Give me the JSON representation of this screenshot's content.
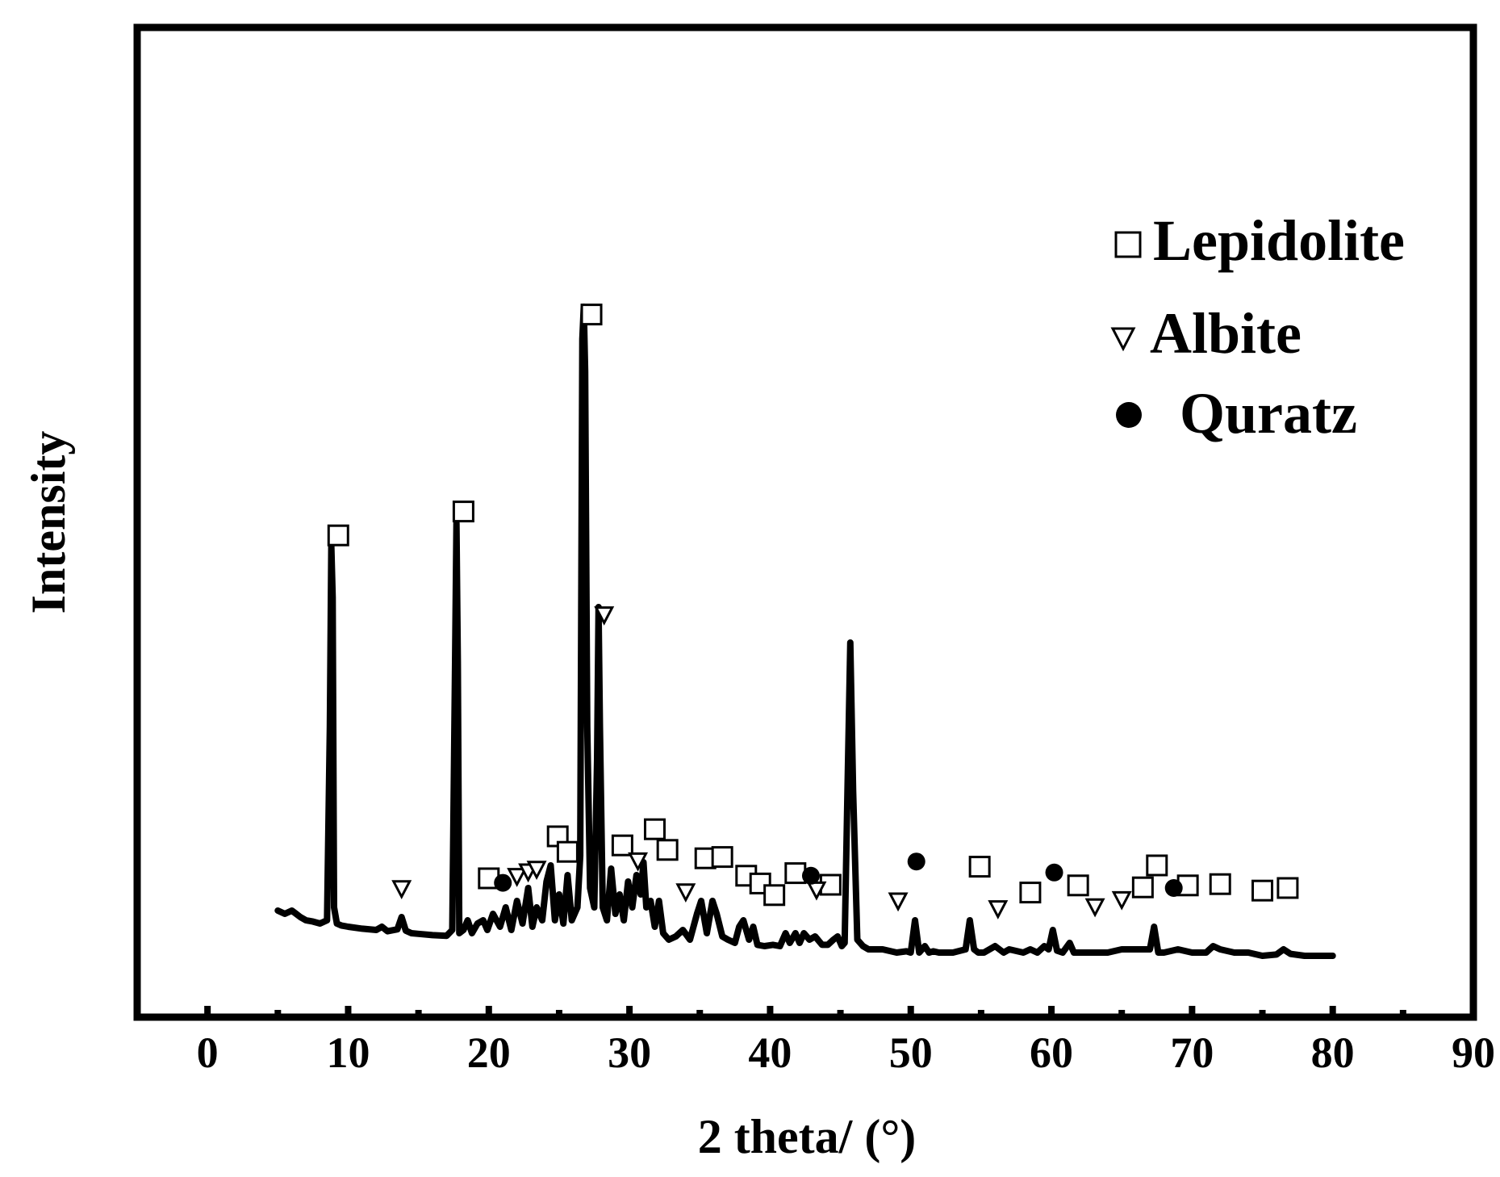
{
  "chart_data": {
    "type": "line",
    "xlabel": "2 theta/ (°)",
    "ylabel": "Intensity",
    "xlim": [
      -5,
      90
    ],
    "ylim": [
      0,
      100
    ],
    "x_ticks": [
      "0",
      "10",
      "20",
      "30",
      "40",
      "50",
      "60",
      "70",
      "80",
      "90"
    ],
    "x_tick_values": [
      0,
      10,
      20,
      30,
      40,
      50,
      60,
      70,
      80,
      90
    ],
    "x_minor_ticks": [
      -5,
      5,
      15,
      25,
      35,
      45,
      55,
      65,
      75,
      85
    ],
    "legend_position": "top-right",
    "legend": [
      {
        "marker": "open-square",
        "label": "Lepidolite"
      },
      {
        "marker": "open-triangle-down",
        "label": "Albite"
      },
      {
        "marker": "filled-circle",
        "label": "Quratz"
      }
    ],
    "series": [
      {
        "x": [
          5,
          5.5,
          6,
          6.3,
          6.6,
          7,
          7.5,
          8,
          8.5,
          8.7,
          8.8,
          8.9,
          9.0,
          9.2,
          9.5,
          10,
          11,
          12,
          12.4,
          12.8,
          13.5,
          13.8,
          14.1,
          14.5,
          15,
          16,
          17,
          17.4,
          17.6,
          17.7,
          17.8,
          17.9,
          18.2,
          18.5,
          18.8,
          19.2,
          19.6,
          19.9,
          20.3,
          20.8,
          21.2,
          21.6,
          22,
          22.4,
          22.8,
          23.1,
          23.4,
          23.8,
          24.1,
          24.4,
          24.7,
          25.0,
          25.3,
          25.6,
          25.9,
          26.3,
          26.5,
          26.65,
          26.75,
          26.85,
          27.0,
          27.2,
          27.5,
          27.7,
          27.8,
          27.9,
          28.1,
          28.4,
          28.7,
          29.0,
          29.3,
          29.6,
          29.9,
          30.2,
          30.5,
          30.8,
          31.0,
          31.2,
          31.5,
          31.8,
          32.1,
          32.4,
          32.8,
          33.3,
          33.8,
          34.3,
          34.8,
          35.1,
          35.5,
          35.9,
          36.2,
          36.6,
          37,
          37.5,
          37.8,
          38.1,
          38.5,
          38.8,
          39.1,
          39.6,
          40.2,
          40.7,
          41.1,
          41.4,
          41.8,
          42.1,
          42.4,
          42.8,
          43.2,
          43.7,
          44.1,
          44.5,
          44.8,
          45.1,
          45.3,
          45.5,
          45.7,
          45.9,
          46.2,
          46.6,
          47,
          48,
          49,
          49.7,
          50.0,
          50.3,
          50.6,
          51,
          51.3,
          51.6,
          52,
          53,
          53.9,
          54.2,
          54.5,
          54.8,
          55.2,
          56,
          56.6,
          57,
          58,
          58.5,
          59,
          59.5,
          59.8,
          60.1,
          60.4,
          60.8,
          61.3,
          61.6,
          62,
          63,
          64,
          65,
          66,
          67,
          67.3,
          67.6,
          68,
          69,
          70,
          71,
          71.5,
          72,
          73,
          74,
          75,
          76,
          76.5,
          77,
          78,
          79,
          80
        ],
        "y": [
          11.5,
          11,
          11.5,
          11,
          10.5,
          10,
          9.8,
          9.5,
          10,
          40,
          68,
          60,
          12,
          9.5,
          9.2,
          9,
          8.7,
          8.5,
          9,
          8.3,
          8.6,
          10.5,
          8.4,
          8,
          7.9,
          7.7,
          7.6,
          8.5,
          50,
          71.5,
          50,
          8,
          8.5,
          10,
          8,
          9.5,
          10,
          8.5,
          11,
          9,
          12,
          8.5,
          13,
          9.5,
          15,
          9,
          12,
          10,
          16,
          18.5,
          10,
          14,
          9.5,
          17,
          10,
          12,
          20,
          100,
          105,
          95,
          40,
          15,
          12,
          35,
          58.5,
          40,
          12,
          10,
          18,
          11,
          14,
          10,
          16,
          12,
          17,
          14,
          19,
          12,
          13,
          9,
          13,
          8,
          7,
          7.5,
          8.5,
          7,
          11,
          13,
          8,
          13,
          11,
          7.5,
          7,
          6.5,
          9,
          10,
          7,
          9,
          6.2,
          6,
          6.2,
          6,
          8,
          6.5,
          8,
          6.5,
          8,
          7,
          7.5,
          6.2,
          6.2,
          7,
          7.5,
          6,
          6.5,
          30,
          53,
          30,
          7,
          6,
          5.5,
          5.5,
          5,
          5.2,
          5,
          10,
          5,
          6,
          5,
          5.2,
          5,
          5,
          5.5,
          10,
          5.5,
          5,
          5,
          6,
          5,
          5.5,
          5,
          5.5,
          5,
          6,
          5.5,
          8.5,
          5.3,
          5,
          6.5,
          5,
          5,
          5,
          5,
          5.5,
          5.5,
          5.5,
          9,
          5,
          5,
          5.5,
          5,
          5,
          6,
          5.5,
          5,
          5,
          4.5,
          4.7,
          5.5,
          4.8,
          4.5,
          4.5,
          4.5
        ]
      }
    ],
    "phase_markers": [
      {
        "phase": "Lepidolite",
        "x": [
          9.3,
          18.2,
          27.3,
          20.0,
          24.9,
          25.6,
          29.5,
          31.8,
          32.7,
          35.4,
          36.6,
          38.3,
          39.3,
          40.3,
          41.8,
          44.3,
          54.9,
          58.5,
          61.9,
          66.5,
          67.5,
          69.7,
          72.0,
          75.0,
          76.8
        ],
        "y": [
          69.6,
          73.3,
          103.8,
          16.5,
          23.0,
          20.6,
          21.6,
          24.1,
          20.9,
          19.6,
          19.8,
          16.9,
          15.7,
          13.9,
          17.3,
          15.5,
          18.3,
          14.3,
          15.4,
          15.1,
          18.5,
          15.4,
          15.6,
          14.6,
          15.0
        ]
      },
      {
        "phase": "Albite",
        "x": [
          13.8,
          22.0,
          22.8,
          23.4,
          28.2,
          30.6,
          34.0,
          43.3,
          49.1,
          56.2,
          63.1,
          65.0
        ],
        "y": [
          14.9,
          16.8,
          17.5,
          17.9,
          57.3,
          19.2,
          14.4,
          14.7,
          13.0,
          11.8,
          12.1,
          13.2
        ]
      },
      {
        "phase": "Quratz",
        "x": [
          21.0,
          42.9,
          50.4,
          60.2,
          68.7
        ],
        "y": [
          15.8,
          16.9,
          19.1,
          17.4,
          15.0
        ]
      }
    ]
  }
}
